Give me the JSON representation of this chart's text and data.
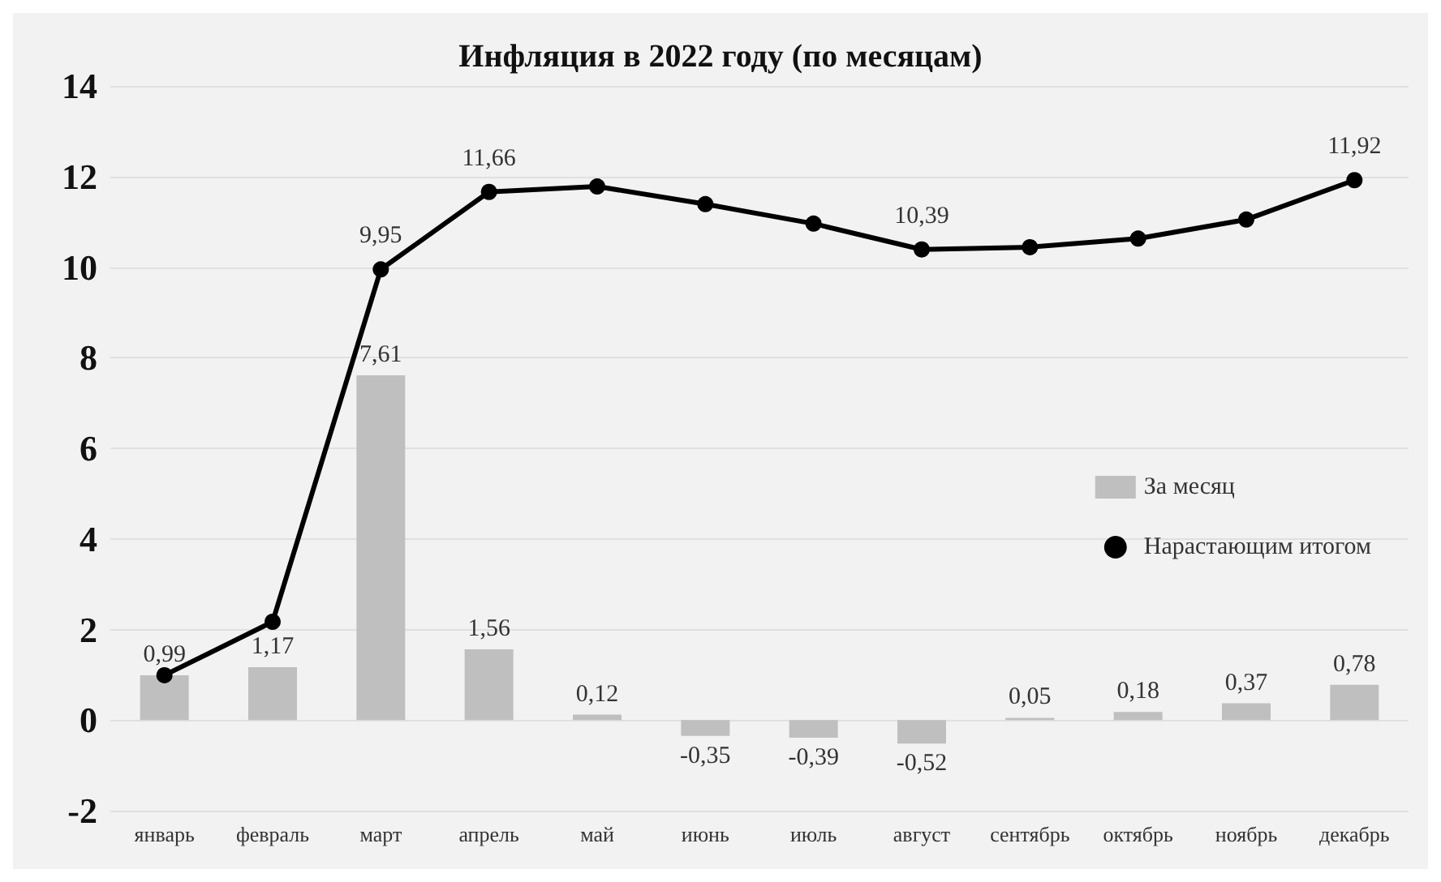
{
  "chart_data": {
    "type": "bar",
    "title": "Инфляция в 2022 году (по месяцам)",
    "categories": [
      "январь",
      "февраль",
      "март",
      "апрель",
      "май",
      "июнь",
      "июль",
      "август",
      "сентябрь",
      "октябрь",
      "ноябрь",
      "декабрь"
    ],
    "series": [
      {
        "name": "За месяц",
        "color": "#bfbfbf",
        "values": [
          0.99,
          1.17,
          7.61,
          1.56,
          0.12,
          -0.35,
          -0.39,
          -0.52,
          0.05,
          0.18,
          0.37,
          0.78
        ],
        "value_labels": [
          "0,99",
          "1,17",
          "7,61",
          "1,56",
          "0,12",
          "-0,35",
          "-0,39",
          "-0,52",
          "0,05",
          "0,18",
          "0,37",
          "0,78"
        ]
      },
      {
        "name": "Нарастающим итогом",
        "type": "line",
        "color": "#000000",
        "marker": "circle",
        "values": [
          0.99,
          2.17,
          9.95,
          11.66,
          11.78,
          11.39,
          10.96,
          10.39,
          10.44,
          10.63,
          11.05,
          11.92
        ],
        "value_labels": [
          null,
          null,
          "9,95",
          "11,66",
          null,
          null,
          null,
          "10,39",
          null,
          null,
          null,
          "11,92"
        ]
      }
    ],
    "ylim": [
      -2,
      14
    ],
    "yticks": [
      -2,
      0,
      2,
      4,
      6,
      8,
      10,
      12,
      14
    ],
    "grid": "y",
    "legend": "right"
  }
}
